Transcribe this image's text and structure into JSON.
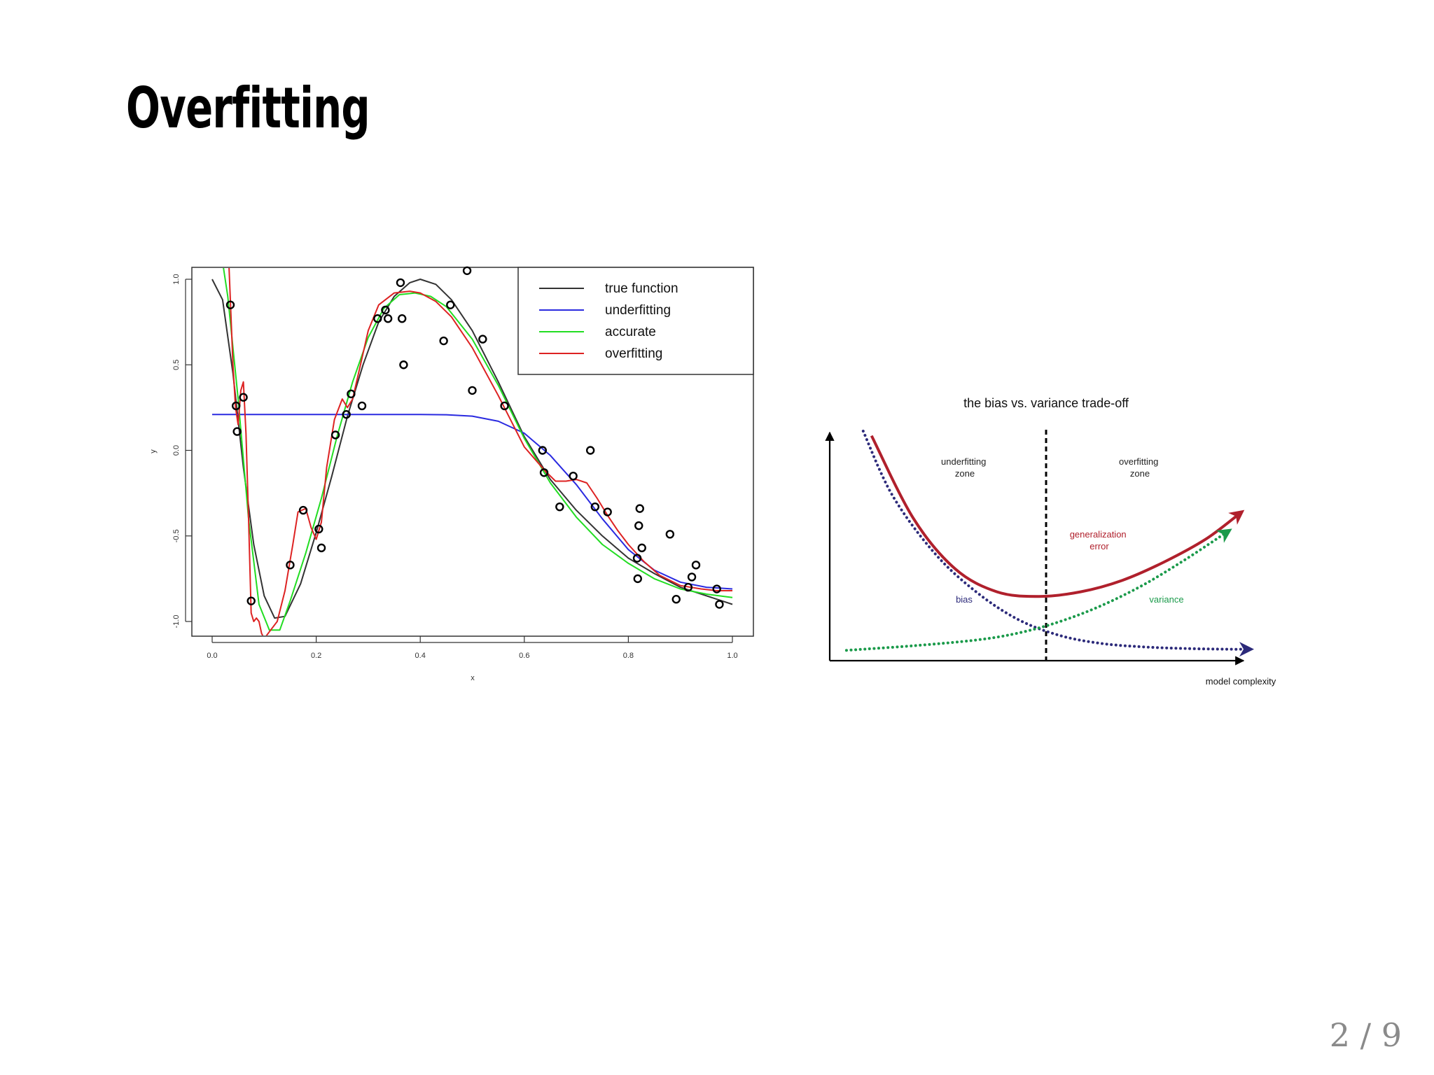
{
  "slide": {
    "title": "Overfitting",
    "page_number": "2 / 9"
  },
  "chart_data": [
    {
      "type": "line",
      "xlabel": "x",
      "ylabel": "y",
      "xlim": [
        0.0,
        1.0
      ],
      "ylim": [
        -1.0,
        1.0
      ],
      "x_ticks": [
        "0.0",
        "0.2",
        "0.4",
        "0.6",
        "0.8",
        "1.0"
      ],
      "y_ticks": [
        "-1.0",
        "-0.5",
        "0.0",
        "0.5",
        "1.0"
      ],
      "legend_position": "top-right",
      "series": [
        {
          "name": "true function",
          "color": "#333333",
          "x": [
            0.0,
            0.02,
            0.04,
            0.06,
            0.08,
            0.1,
            0.12,
            0.14,
            0.17,
            0.2,
            0.23,
            0.26,
            0.29,
            0.32,
            0.35,
            0.38,
            0.4,
            0.43,
            0.46,
            0.5,
            0.55,
            0.6,
            0.65,
            0.7,
            0.75,
            0.8,
            0.85,
            0.9,
            0.95,
            1.0
          ],
          "y": [
            1.0,
            0.88,
            0.45,
            -0.1,
            -0.55,
            -0.85,
            -0.98,
            -0.97,
            -0.78,
            -0.48,
            -0.15,
            0.2,
            0.5,
            0.75,
            0.9,
            0.98,
            1.0,
            0.97,
            0.88,
            0.7,
            0.4,
            0.08,
            -0.17,
            -0.35,
            -0.5,
            -0.63,
            -0.72,
            -0.8,
            -0.85,
            -0.9
          ]
        },
        {
          "name": "underfitting",
          "color": "#2a2ae0",
          "x": [
            0.0,
            0.1,
            0.2,
            0.3,
            0.4,
            0.45,
            0.5,
            0.55,
            0.6,
            0.65,
            0.7,
            0.75,
            0.8,
            0.85,
            0.9,
            0.95,
            1.0
          ],
          "y": [
            0.21,
            0.21,
            0.21,
            0.21,
            0.21,
            0.208,
            0.2,
            0.17,
            0.1,
            -0.03,
            -0.2,
            -0.4,
            -0.58,
            -0.7,
            -0.77,
            -0.8,
            -0.81
          ]
        },
        {
          "name": "accurate",
          "color": "#22dd22",
          "x": [
            0.02,
            0.03,
            0.05,
            0.07,
            0.09,
            0.11,
            0.13,
            0.15,
            0.18,
            0.21,
            0.24,
            0.27,
            0.3,
            0.33,
            0.36,
            0.39,
            0.42,
            0.45,
            0.5,
            0.55,
            0.6,
            0.65,
            0.7,
            0.75,
            0.8,
            0.85,
            0.9,
            0.95,
            1.0
          ],
          "y": [
            1.1,
            0.9,
            0.3,
            -0.4,
            -0.9,
            -1.05,
            -1.05,
            -0.88,
            -0.6,
            -0.28,
            0.08,
            0.4,
            0.66,
            0.83,
            0.91,
            0.92,
            0.9,
            0.84,
            0.65,
            0.38,
            0.07,
            -0.19,
            -0.39,
            -0.55,
            -0.66,
            -0.75,
            -0.81,
            -0.84,
            -0.86
          ]
        },
        {
          "name": "overfitting",
          "color": "#dd2222",
          "x": [
            0.032,
            0.04,
            0.045,
            0.05,
            0.055,
            0.06,
            0.065,
            0.07,
            0.075,
            0.08,
            0.085,
            0.09,
            0.095,
            0.1,
            0.105,
            0.11,
            0.125,
            0.14,
            0.155,
            0.165,
            0.18,
            0.19,
            0.2,
            0.21,
            0.22,
            0.235,
            0.25,
            0.26,
            0.27,
            0.285,
            0.3,
            0.32,
            0.35,
            0.38,
            0.4,
            0.43,
            0.46,
            0.5,
            0.55,
            0.6,
            0.64,
            0.66,
            0.68,
            0.7,
            0.72,
            0.74,
            0.76,
            0.78,
            0.8,
            0.83,
            0.86,
            0.9,
            0.94,
            0.97,
            1.0
          ],
          "y": [
            1.1,
            0.5,
            0.25,
            0.15,
            0.35,
            0.4,
            0.1,
            -0.4,
            -0.95,
            -1.0,
            -0.98,
            -1.0,
            -1.07,
            -1.1,
            -1.08,
            -1.06,
            -1.0,
            -0.82,
            -0.55,
            -0.36,
            -0.34,
            -0.45,
            -0.52,
            -0.42,
            -0.1,
            0.18,
            0.3,
            0.25,
            0.3,
            0.5,
            0.7,
            0.85,
            0.92,
            0.93,
            0.92,
            0.87,
            0.78,
            0.6,
            0.32,
            0.02,
            -0.12,
            -0.18,
            -0.18,
            -0.17,
            -0.19,
            -0.28,
            -0.38,
            -0.47,
            -0.55,
            -0.65,
            -0.73,
            -0.79,
            -0.81,
            -0.82,
            -0.82
          ]
        }
      ],
      "points": {
        "x": [
          0.035,
          0.046,
          0.048,
          0.06,
          0.075,
          0.15,
          0.175,
          0.205,
          0.21,
          0.237,
          0.258,
          0.267,
          0.288,
          0.318,
          0.333,
          0.338,
          0.362,
          0.365,
          0.368,
          0.445,
          0.458,
          0.49,
          0.5,
          0.52,
          0.562,
          0.635,
          0.638,
          0.668,
          0.694,
          0.727,
          0.736,
          0.76,
          0.817,
          0.82,
          0.818,
          0.822,
          0.826,
          0.88,
          0.892,
          0.915,
          0.922,
          0.93,
          0.97,
          0.975
        ],
        "y": [
          0.85,
          0.26,
          0.11,
          0.31,
          -0.88,
          -0.67,
          -0.35,
          -0.46,
          -0.57,
          0.09,
          0.21,
          0.33,
          0.26,
          0.77,
          0.82,
          0.77,
          0.98,
          0.77,
          0.5,
          0.64,
          0.85,
          1.05,
          0.35,
          0.65,
          0.26,
          0.0,
          -0.13,
          -0.33,
          -0.15,
          0.0,
          -0.33,
          -0.36,
          -0.63,
          -0.44,
          -0.75,
          -0.34,
          -0.57,
          -0.49,
          -0.87,
          -0.8,
          -0.74,
          -0.67,
          -0.81,
          -0.9
        ]
      }
    },
    {
      "type": "line",
      "title": "the bias vs. variance trade-off",
      "xlabel": "model complexity",
      "ylabel": "",
      "annotations": {
        "underfitting_zone": [
          "underfitting",
          "zone"
        ],
        "overfitting_zone": [
          "overfitting",
          "zone"
        ],
        "generalization_error": [
          "generalization",
          "error"
        ],
        "bias": "bias",
        "variance": "variance"
      },
      "colors": {
        "generalization_error": "#b0202c",
        "bias": "#2c2a7a",
        "variance": "#1a9a4a"
      },
      "series": [
        {
          "name": "generalization error",
          "color": "#b0202c",
          "x": [
            0.1,
            0.2,
            0.3,
            0.4,
            0.5,
            0.6,
            0.7,
            0.8,
            0.9,
            0.98
          ],
          "y": [
            0.98,
            0.62,
            0.4,
            0.3,
            0.28,
            0.3,
            0.35,
            0.43,
            0.53,
            0.64
          ]
        },
        {
          "name": "bias",
          "color": "#2c2a7a",
          "x": [
            0.08,
            0.15,
            0.25,
            0.35,
            0.45,
            0.55,
            0.65,
            0.75,
            0.85,
            0.95,
            1.0
          ],
          "y": [
            1.0,
            0.72,
            0.47,
            0.3,
            0.18,
            0.11,
            0.075,
            0.06,
            0.053,
            0.05,
            0.05
          ]
        },
        {
          "name": "variance",
          "color": "#1a9a4a",
          "x": [
            0.04,
            0.2,
            0.35,
            0.45,
            0.55,
            0.65,
            0.75,
            0.85,
            0.95
          ],
          "y": [
            0.045,
            0.065,
            0.09,
            0.12,
            0.17,
            0.24,
            0.33,
            0.44,
            0.56
          ]
        }
      ]
    }
  ]
}
